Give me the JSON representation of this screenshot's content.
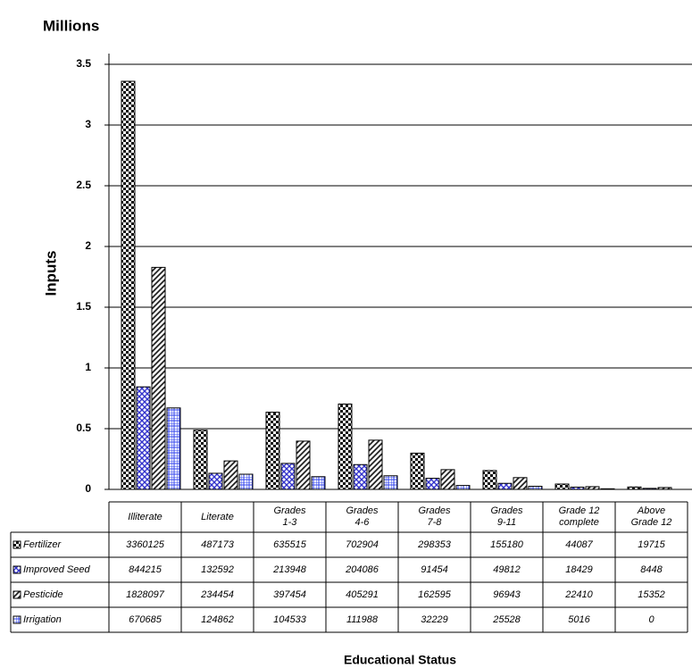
{
  "chart_data": {
    "type": "bar",
    "y_unit_label": "Millions",
    "y_label": "Inputs",
    "x_label": "Educational Status",
    "categories": [
      "Illiterate",
      "Literate",
      "Grades\n1-3",
      "Grades\n4-6",
      "Grades\n7-8",
      "Grades\n9-11",
      "Grade 12\ncomplete",
      "Above\nGrade 12"
    ],
    "series": [
      {
        "name": "Fertilizer",
        "color": "#111111",
        "values": [
          3.360125,
          0.487173,
          0.635515,
          0.702904,
          0.298353,
          0.15518,
          0.044087,
          0.019715
        ],
        "value_labels": [
          "3360125",
          "487173",
          "635515",
          "702904",
          "298353",
          "155180",
          "44087",
          "19715"
        ]
      },
      {
        "name": "Improved Seed",
        "color": "#3333cc",
        "values": [
          0.844215,
          0.132592,
          0.213948,
          0.204086,
          0.091454,
          0.049812,
          0.018429,
          0.008448
        ],
        "value_labels": [
          "844215",
          "132592",
          "213948",
          "204086",
          "91454",
          "49812",
          "18429",
          "8448"
        ]
      },
      {
        "name": "Pesticide",
        "color": "#222222",
        "values": [
          1.828097,
          0.234454,
          0.397454,
          0.405291,
          0.162595,
          0.096943,
          0.02241,
          0.015352
        ],
        "value_labels": [
          "1828097",
          "234454",
          "397454",
          "405291",
          "162595",
          "96943",
          "22410",
          "15352"
        ]
      },
      {
        "name": "Irrigation",
        "color": "#3344ee",
        "values": [
          0.670685,
          0.124862,
          0.104533,
          0.111988,
          0.032229,
          0.025528,
          0.005016,
          0
        ],
        "value_labels": [
          "670685",
          "124862",
          "104533",
          "111988",
          "32229",
          "25528",
          "5016",
          "0"
        ]
      }
    ],
    "ylim": [
      0,
      3.5
    ],
    "yticks": [
      0,
      0.5,
      1,
      1.5,
      2,
      2.5,
      3,
      3.5
    ],
    "grid": true
  }
}
